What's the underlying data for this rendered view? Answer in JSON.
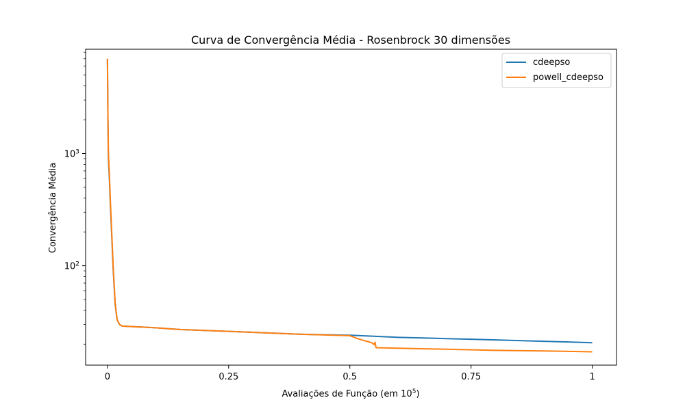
{
  "chart_data": {
    "type": "line",
    "title": "Curva de Convergência Média - Rosenbrock 30 dimensões",
    "xlabel_main": "Avaliações de Função (em 10",
    "xlabel_exp": "5",
    "xlabel_close": ")",
    "ylabel": "Convergência Média",
    "xlim": [
      -0.045,
      1.05
    ],
    "ylim": [
      13,
      8500
    ],
    "yscale": "log",
    "x_ticks": [
      {
        "value": 0,
        "label": "0"
      },
      {
        "value": 0.25,
        "label": "0.25"
      },
      {
        "value": 0.5,
        "label": "0.5"
      },
      {
        "value": 0.75,
        "label": "0.75"
      },
      {
        "value": 1,
        "label": "1"
      }
    ],
    "y_ticks": [
      {
        "value": 100,
        "base": "10",
        "exp": "2"
      },
      {
        "value": 1000,
        "base": "10",
        "exp": "3"
      }
    ],
    "legend_position": "top-right",
    "series": [
      {
        "name": "cdeepso",
        "color": "#1f77b4",
        "points": [
          [
            0,
            7000
          ],
          [
            0.001,
            2000
          ],
          [
            0.002,
            900
          ],
          [
            0.004,
            600
          ],
          [
            0.006,
            350
          ],
          [
            0.009,
            180
          ],
          [
            0.012,
            90
          ],
          [
            0.016,
            45
          ],
          [
            0.02,
            33
          ],
          [
            0.025,
            30
          ],
          [
            0.03,
            29
          ],
          [
            0.1,
            28
          ],
          [
            0.15,
            27
          ],
          [
            0.2,
            26.5
          ],
          [
            0.3,
            25.5
          ],
          [
            0.4,
            24.5
          ],
          [
            0.5,
            24
          ],
          [
            0.55,
            23.5
          ],
          [
            0.6,
            23
          ],
          [
            0.65,
            22.7
          ],
          [
            0.7,
            22.4
          ],
          [
            0.75,
            22.1
          ],
          [
            0.8,
            21.8
          ],
          [
            0.85,
            21.5
          ],
          [
            0.9,
            21.2
          ],
          [
            0.95,
            20.9
          ],
          [
            1,
            20.6
          ]
        ]
      },
      {
        "name": "powell_cdeepso",
        "color": "#ff7f0e",
        "points": [
          [
            0,
            7000
          ],
          [
            0.001,
            2200
          ],
          [
            0.002,
            1000
          ],
          [
            0.004,
            650
          ],
          [
            0.006,
            380
          ],
          [
            0.009,
            190
          ],
          [
            0.012,
            95
          ],
          [
            0.016,
            46
          ],
          [
            0.02,
            33
          ],
          [
            0.025,
            30
          ],
          [
            0.03,
            29
          ],
          [
            0.1,
            28
          ],
          [
            0.15,
            27
          ],
          [
            0.2,
            26.5
          ],
          [
            0.3,
            25.5
          ],
          [
            0.4,
            24.5
          ],
          [
            0.5,
            23.8
          ],
          [
            0.515,
            22.5
          ],
          [
            0.525,
            21.8
          ],
          [
            0.535,
            21.2
          ],
          [
            0.545,
            20.6
          ],
          [
            0.55,
            19.8
          ],
          [
            0.552,
            20.8
          ],
          [
            0.554,
            18.6
          ],
          [
            0.6,
            18.4
          ],
          [
            0.7,
            18
          ],
          [
            0.8,
            17.6
          ],
          [
            0.9,
            17.4
          ],
          [
            1,
            17.1
          ]
        ]
      }
    ]
  }
}
